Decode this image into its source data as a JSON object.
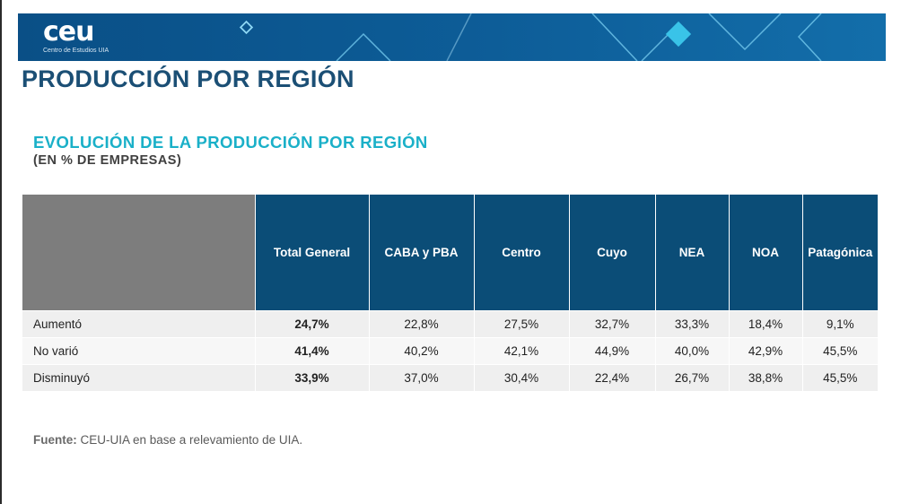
{
  "brand": {
    "logo": "ceu",
    "logo_sub": "Centro de Estudios UIA"
  },
  "page_title": "PRODUCCIÓN POR REGIÓN",
  "chart_title": "EVOLUCIÓN DE LA PRODUCCIÓN POR REGIÓN",
  "chart_subtitle": "(EN % DE EMPRESAS)",
  "table": {
    "columns": [
      "Total General",
      "CABA y PBA",
      "Centro",
      "Cuyo",
      "NEA",
      "NOA",
      "Patagónica"
    ],
    "rows": [
      {
        "label": "Aumentó",
        "values": [
          "24,7%",
          "22,8%",
          "27,5%",
          "32,7%",
          "33,3%",
          "18,4%",
          "9,1%"
        ]
      },
      {
        "label": "No varió",
        "values": [
          "41,4%",
          "40,2%",
          "42,1%",
          "44,9%",
          "40,0%",
          "42,9%",
          "45,5%"
        ]
      },
      {
        "label": "Disminuyó",
        "values": [
          "33,9%",
          "37,0%",
          "30,4%",
          "22,4%",
          "26,7%",
          "38,8%",
          "45,5%"
        ]
      }
    ]
  },
  "source": {
    "label": "Fuente:",
    "text": " CEU-UIA en base a relevamiento de UIA."
  },
  "colors": {
    "banner": "#0d5d98",
    "title": "#1b4f75",
    "chart_title": "#1ab0c8",
    "header_bg": "#0b4d77",
    "corner_bg": "#7d7d7d"
  }
}
